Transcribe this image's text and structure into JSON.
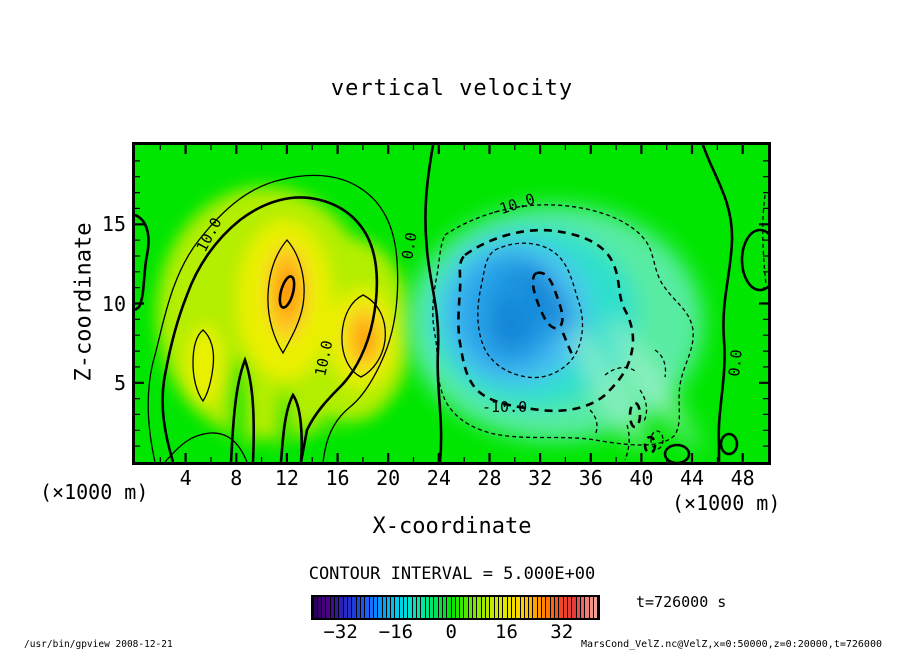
{
  "title": "vertical velocity",
  "axes": {
    "x": {
      "label": "X-coordinate",
      "unit": "(×1000 m)",
      "ticks": [
        4,
        8,
        12,
        16,
        20,
        24,
        28,
        32,
        36,
        40,
        44,
        48
      ],
      "min": 0,
      "max": 50
    },
    "z": {
      "label": "Z-coordinate",
      "unit": "(×1000 m)",
      "ticks": [
        5,
        10,
        15
      ],
      "min": 0,
      "max": 20
    }
  },
  "contour_labels": {
    "plus10": "10.0",
    "zero": "0.0",
    "minus10": "-10.0"
  },
  "contour_interval_text": "CONTOUR INTERVAL = 5.000E+00",
  "colorbar": {
    "tick_values": [
      -32,
      -16,
      0,
      16,
      32
    ],
    "min": -40,
    "max": 42.5,
    "cells": 66,
    "stops": [
      [
        -40,
        "#28005a"
      ],
      [
        -36,
        "#4b0082"
      ],
      [
        -32,
        "#2a1fb4"
      ],
      [
        -28,
        "#1e3cdc"
      ],
      [
        -24,
        "#1e64ff"
      ],
      [
        -20,
        "#00a0ff"
      ],
      [
        -16,
        "#00c8f0"
      ],
      [
        -12,
        "#00e1d2"
      ],
      [
        -8,
        "#00e69b"
      ],
      [
        -4,
        "#00e450"
      ],
      [
        0,
        "#00e400"
      ],
      [
        4,
        "#46e800"
      ],
      [
        8,
        "#8ce800"
      ],
      [
        12,
        "#c8e800"
      ],
      [
        16,
        "#e6e600"
      ],
      [
        20,
        "#ffd200"
      ],
      [
        24,
        "#ffaa00"
      ],
      [
        28,
        "#ff7800"
      ],
      [
        32,
        "#f04628"
      ],
      [
        36,
        "#e63c3c"
      ],
      [
        40,
        "#f08c82"
      ],
      [
        42.5,
        "#f2a89e"
      ]
    ]
  },
  "time_label": "t=726000 s",
  "footer": {
    "left": "/usr/bin/gpview  2008-12-21",
    "right": "MarsCond_VelZ.nc@VelZ,x=0:50000,z=0:20000,t=726000"
  },
  "chart_data": {
    "type": "heatmap",
    "subtype": "filled-contour",
    "title": "vertical velocity",
    "xlabel": "X-coordinate (×1000 m)",
    "ylabel": "Z-coordinate (×1000 m)",
    "xlim": [
      0,
      50
    ],
    "ylim": [
      0,
      20
    ],
    "x_ticks": [
      4,
      8,
      12,
      16,
      20,
      24,
      28,
      32,
      36,
      40,
      44,
      48
    ],
    "y_ticks": [
      5,
      10,
      15
    ],
    "contour_interval": 5.0,
    "labeled_contour_values": [
      10.0,
      0.0,
      -10.0
    ],
    "colorbar_ticks": [
      -32,
      -16,
      0,
      16,
      32
    ],
    "time": "t=726000 s",
    "features": [
      {
        "feature": "updraft maximum (orange core, >20 contour)",
        "x": 12,
        "z": 11,
        "value_approx": 21
      },
      {
        "feature": "updraft secondary core",
        "x": 18,
        "z": 8,
        "value_approx": 17
      },
      {
        "feature": "updraft lobe",
        "x": 5,
        "z": 6.5,
        "value_approx": 15
      },
      {
        "feature": "downdraft minimum (blue core, <-20 dashed contour)",
        "x": 31,
        "z": 9.5,
        "value_approx": -22
      },
      {
        "feature": "zero contour line",
        "x": 23.5,
        "z_range": [
          0,
          20
        ],
        "value": 0
      },
      {
        "feature": "zero contour line",
        "x": 46.5,
        "z_range": [
          0,
          20
        ],
        "value": 0
      }
    ],
    "legend_position": "bottom-colorbar",
    "grid": false
  }
}
